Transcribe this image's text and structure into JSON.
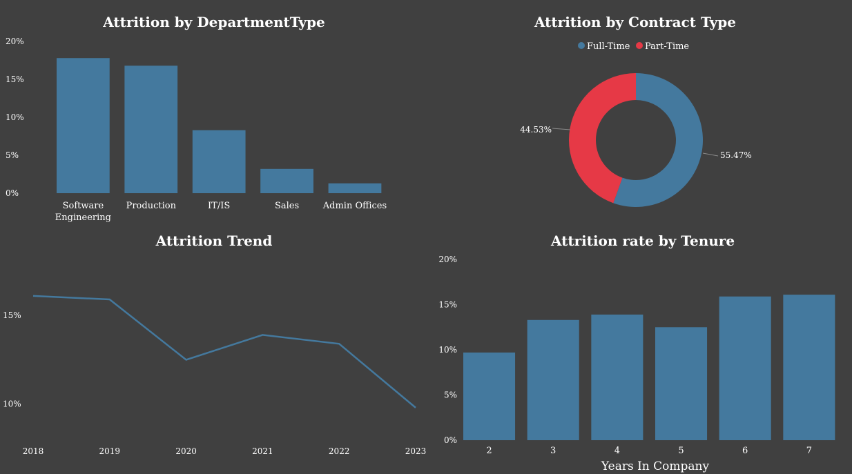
{
  "colors": {
    "background": "#404040",
    "bar": "#44799e",
    "full_time": "#44799e",
    "part_time": "#e63946",
    "line": "#44799e"
  },
  "chart_data": [
    {
      "id": "dept",
      "type": "bar",
      "title": "Attrition by DepartmentType",
      "categories": [
        "Software Engineering",
        "Production",
        "IT/IS",
        "Sales",
        "Admin Offices"
      ],
      "category_lines": [
        [
          "Software",
          "Engineering"
        ],
        [
          "Production"
        ],
        [
          "IT/IS"
        ],
        [
          "Sales"
        ],
        [
          "Admin Offices"
        ]
      ],
      "values": [
        17.8,
        16.8,
        8.3,
        3.2,
        1.3
      ],
      "ylim": [
        0,
        20
      ],
      "yticks": [
        0,
        5,
        10,
        15,
        20
      ],
      "ytick_labels": [
        "0%",
        "5%",
        "10%",
        "15%",
        "20%"
      ]
    },
    {
      "id": "contract",
      "type": "pie",
      "title": "Attrition by Contract Type",
      "legend": [
        "Full-Time",
        "Part-Time"
      ],
      "legend_position": "top",
      "slices": [
        {
          "name": "Full-Time",
          "value": 55.47,
          "label": "55.47%"
        },
        {
          "name": "Part-Time",
          "value": 44.53,
          "label": "44.53%"
        }
      ]
    },
    {
      "id": "trend",
      "type": "line",
      "title": "Attrition Trend",
      "x": [
        "2018",
        "2019",
        "2020",
        "2021",
        "2022",
        "2023"
      ],
      "values": [
        16.1,
        15.9,
        12.5,
        13.9,
        13.4,
        9.8
      ],
      "ylim": [
        8.2,
        18.0
      ],
      "yticks": [
        10,
        15
      ],
      "ytick_labels": [
        "10%",
        "15%"
      ]
    },
    {
      "id": "tenure",
      "type": "bar",
      "title": "Attrition rate by Tenure",
      "xlabel": "Years In Company",
      "categories": [
        "2",
        "3",
        "4",
        "5",
        "6",
        "7"
      ],
      "values": [
        9.7,
        13.3,
        13.9,
        12.5,
        15.9,
        16.1
      ],
      "ylim": [
        0,
        20
      ],
      "yticks": [
        0,
        5,
        10,
        15,
        20
      ],
      "ytick_labels": [
        "0%",
        "5%",
        "10%",
        "15%",
        "20%"
      ]
    }
  ]
}
